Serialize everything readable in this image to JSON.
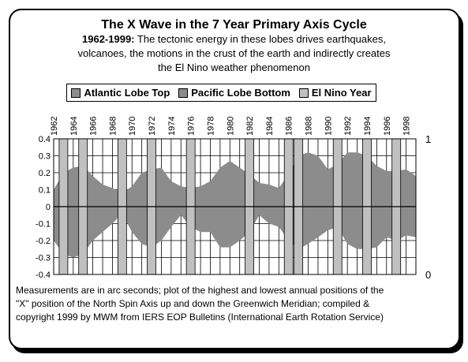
{
  "header": {
    "title": "The X Wave in the 7 Year Primary Axis Cycle",
    "subtitle_bold": "1962-1999:",
    "subtitle_line1": " The tectonic energy in these lobes drives earthquakes,",
    "subtitle_line2": "volcanoes, the motions in the crust of the earth and indirectly creates",
    "subtitle_line3": "the El Nino weather phenomenon"
  },
  "legend": [
    {
      "label": "Atlantic Lobe Top",
      "color": "#8c8c8c"
    },
    {
      "label": "Pacific Lobe Bottom",
      "color": "#8c8c8c"
    },
    {
      "label": "El Nino Year",
      "color": "#c0c0c0"
    }
  ],
  "footer": {
    "line1": "Measurements are in arc seconds; plot of the highest and lowest annual positions of the",
    "line2": "\"X\" position of the North Spin Axis up and down the Greenwich Meridian; compiled &",
    "line3": "copyright 1999 by MWM from IERS EOP Bulletins (International Earth Rotation Service)"
  },
  "chart_data": {
    "type": "area",
    "x_tick_labels": [
      "1962",
      "1964",
      "1966",
      "1968",
      "1970",
      "1972",
      "1974",
      "1976",
      "1978",
      "1980",
      "1982",
      "1984",
      "1986",
      "1988",
      "1990",
      "1992",
      "1994",
      "1996",
      "1998"
    ],
    "x": [
      1962,
      1963,
      1964,
      1965,
      1966,
      1967,
      1968,
      1969,
      1970,
      1971,
      1972,
      1973,
      1974,
      1975,
      1976,
      1977,
      1978,
      1979,
      1980,
      1981,
      1982,
      1983,
      1984,
      1985,
      1986,
      1987,
      1988,
      1989,
      1990,
      1991,
      1992,
      1993,
      1994,
      1995,
      1996,
      1997,
      1998,
      1999
    ],
    "xlim": [
      1962,
      1999
    ],
    "series": [
      {
        "name": "Atlantic Lobe Top",
        "color": "#8c8c8c",
        "values": [
          0.1,
          0.2,
          0.23,
          0.24,
          0.18,
          0.13,
          0.11,
          0.08,
          0.12,
          0.2,
          0.22,
          0.23,
          0.15,
          0.12,
          0.11,
          0.12,
          0.15,
          0.23,
          0.27,
          0.23,
          0.19,
          0.14,
          0.13,
          0.11,
          0.19,
          0.3,
          0.32,
          0.3,
          0.22,
          0.25,
          0.32,
          0.32,
          0.3,
          0.24,
          0.21,
          0.21,
          0.22,
          0.18
        ]
      },
      {
        "name": "Pacific Lobe Bottom",
        "color": "#8c8c8c",
        "values": [
          -0.2,
          -0.28,
          -0.3,
          -0.28,
          -0.2,
          -0.15,
          -0.1,
          -0.04,
          -0.15,
          -0.22,
          -0.24,
          -0.2,
          -0.12,
          -0.05,
          -0.12,
          -0.15,
          -0.15,
          -0.24,
          -0.24,
          -0.2,
          -0.15,
          -0.05,
          -0.1,
          -0.12,
          -0.2,
          -0.25,
          -0.22,
          -0.18,
          -0.14,
          -0.12,
          -0.22,
          -0.25,
          -0.25,
          -0.24,
          -0.18,
          -0.2,
          -0.17,
          -0.18
        ]
      }
    ],
    "el_nino_years": [
      1963,
      1965,
      1969,
      1972,
      1976,
      1982,
      1986,
      1987,
      1991,
      1994,
      1997
    ],
    "el_nino_color": "#c0c0c0",
    "y_left": {
      "ticks": [
        "0.4",
        "0.3",
        "0.2",
        "0.1",
        "0",
        "-0.1",
        "-0.2",
        "-0.3",
        "-0.4"
      ],
      "ylim": [
        -0.4,
        0.4
      ]
    },
    "y_right": {
      "ticks": [
        "1",
        "0"
      ],
      "ylim": [
        0,
        1
      ]
    },
    "grid": true,
    "legend_position": "top"
  }
}
